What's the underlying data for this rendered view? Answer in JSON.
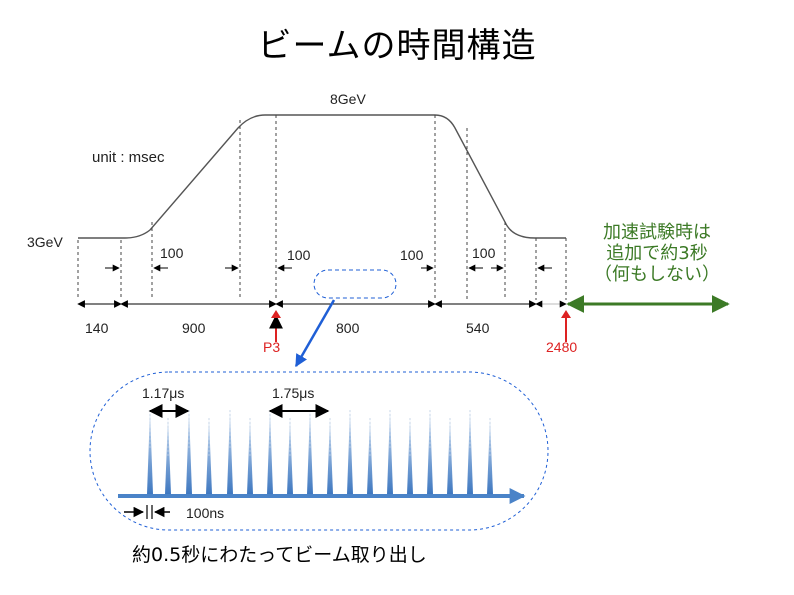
{
  "title": "ビームの時間構造",
  "energy": {
    "top": "8GeV",
    "bottom": "3GeV"
  },
  "unit_label": "unit : msec",
  "ramp_labels": [
    "100",
    "100",
    "100",
    "100"
  ],
  "segments": [
    "140",
    "900",
    "800",
    "540"
  ],
  "markers": {
    "p3": "P3",
    "end": "2480"
  },
  "note_lines": [
    "加速試験時は",
    "追加で約3秒",
    "（何もしない）"
  ],
  "inset": {
    "spacing_1": "1.17μs",
    "spacing_2": "1.75μs",
    "width": "100ns"
  },
  "caption": "約0.5秒にわたってビーム取り出し",
  "colors": {
    "red": "#dd2222",
    "green": "#3c7a26",
    "blue": "#1f5fd6",
    "pulse": "#4a83c8"
  }
}
